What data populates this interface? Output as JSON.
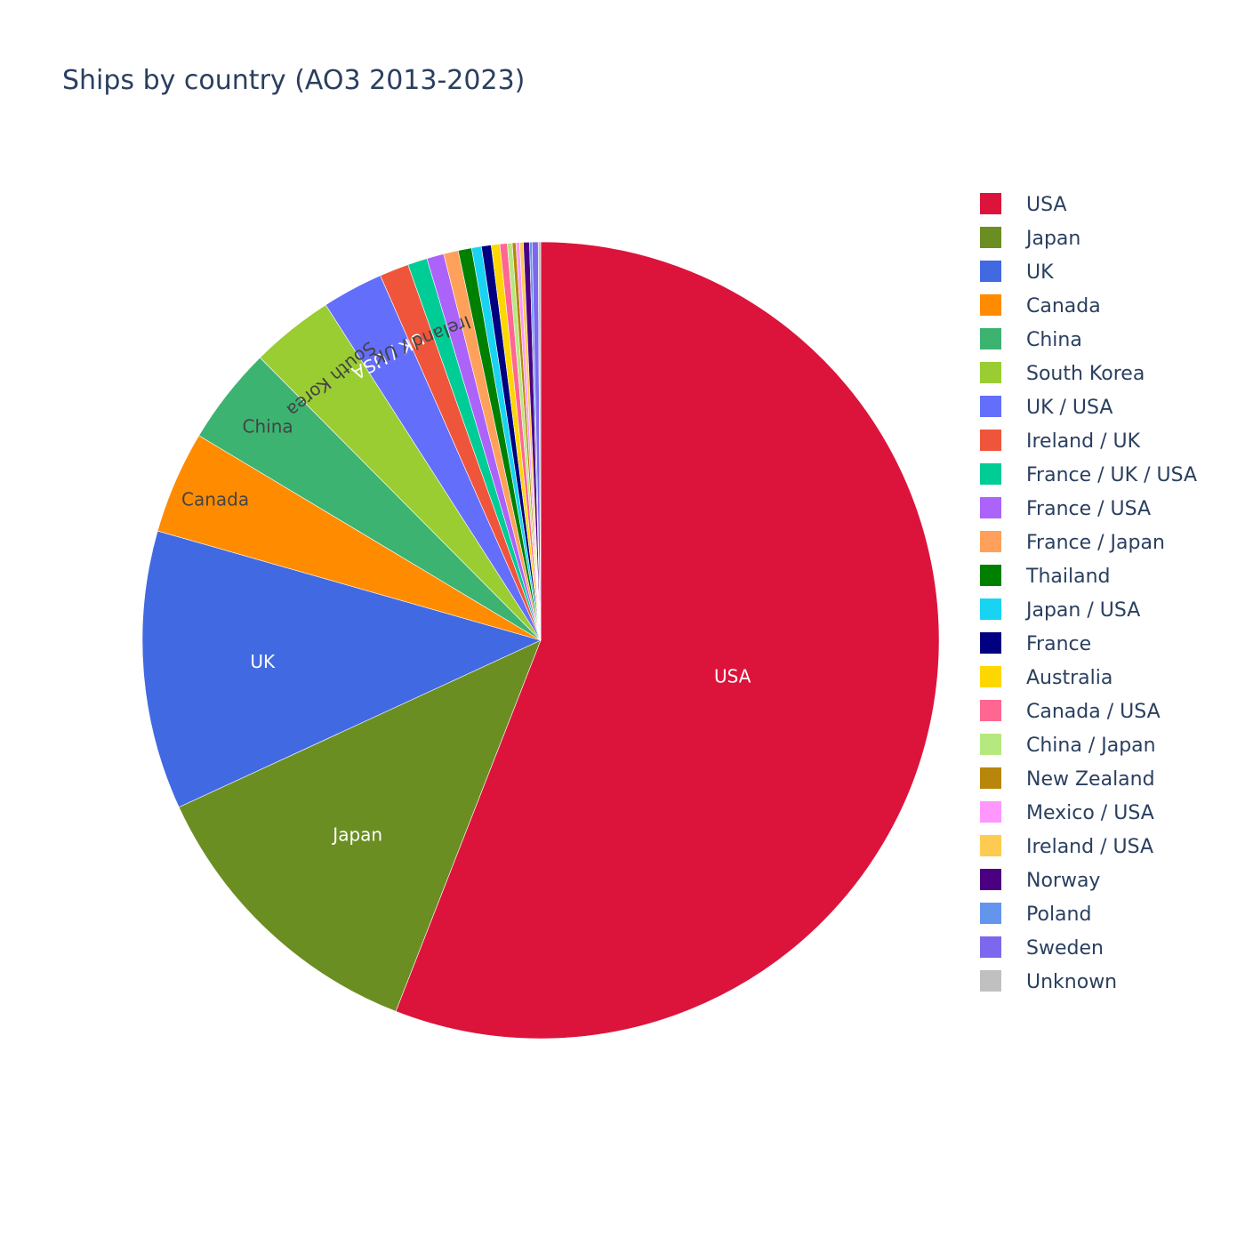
{
  "chart_data": {
    "type": "pie",
    "title": "Ships by country (AO3 2013-2023)",
    "direction": "clockwise",
    "start": "top",
    "legend": "right",
    "slices": [
      {
        "label": "USA",
        "value": 56.4,
        "color": "#DC143C",
        "text_color": "#ffffff"
      },
      {
        "label": "Japan",
        "value": 12.3,
        "color": "#6B8E23",
        "text_color": "#ffffff"
      },
      {
        "label": "UK",
        "value": 11.4,
        "color": "#4169E1",
        "text_color": "#ffffff"
      },
      {
        "label": "Canada",
        "value": 4.2,
        "color": "#FF8C00",
        "text_color": "#444444"
      },
      {
        "label": "China",
        "value": 4.0,
        "color": "#3CB371",
        "text_color": "#444444"
      },
      {
        "label": "South Korea",
        "value": 3.4,
        "color": "#9ACD32",
        "text_color": "#444444"
      },
      {
        "label": "UK / USA",
        "value": 2.5,
        "color": "#636EFA",
        "text_color": "#ffffff"
      },
      {
        "label": "Ireland / UK",
        "value": 1.2,
        "color": "#EF553B",
        "text_color": "#444444"
      },
      {
        "label": "France / UK / USA",
        "value": 0.8,
        "color": "#00CC96",
        "text_color": "#444444"
      },
      {
        "label": "France / USA",
        "value": 0.7,
        "color": "#AB63FA",
        "text_color": "#444444"
      },
      {
        "label": "France / Japan",
        "value": 0.6,
        "color": "#FFA15A",
        "text_color": "#444444"
      },
      {
        "label": "Thailand",
        "value": 0.55,
        "color": "#008000",
        "text_color": "#444444"
      },
      {
        "label": "Japan / USA",
        "value": 0.4,
        "color": "#19D3F3",
        "text_color": "#444444"
      },
      {
        "label": "France",
        "value": 0.4,
        "color": "#000080",
        "text_color": "#444444"
      },
      {
        "label": "Australia",
        "value": 0.35,
        "color": "#FFD700",
        "text_color": "#444444"
      },
      {
        "label": "Canada / USA",
        "value": 0.3,
        "color": "#FF6692",
        "text_color": "#444444"
      },
      {
        "label": "China / Japan",
        "value": 0.2,
        "color": "#B6E880",
        "text_color": "#444444"
      },
      {
        "label": "New Zealand",
        "value": 0.15,
        "color": "#B8860B",
        "text_color": "#444444"
      },
      {
        "label": "Mexico / USA",
        "value": 0.15,
        "color": "#FF97FF",
        "text_color": "#444444"
      },
      {
        "label": "Ireland / USA",
        "value": 0.15,
        "color": "#FECB52",
        "text_color": "#444444"
      },
      {
        "label": "Norway",
        "value": 0.25,
        "color": "#4B0082",
        "text_color": "#444444"
      },
      {
        "label": "Poland",
        "value": 0.1,
        "color": "#6495ED",
        "text_color": "#444444"
      },
      {
        "label": "Sweden",
        "value": 0.25,
        "color": "#7B68EE",
        "text_color": "#444444"
      },
      {
        "label": "Unknown",
        "value": 0.1,
        "color": "#C0C0C0",
        "text_color": "#444444"
      }
    ],
    "visible_slice_labels": [
      "USA",
      "Japan",
      "UK",
      "Canada",
      "China",
      "South Korea",
      "UK / USA",
      "Ireland / UK"
    ]
  }
}
